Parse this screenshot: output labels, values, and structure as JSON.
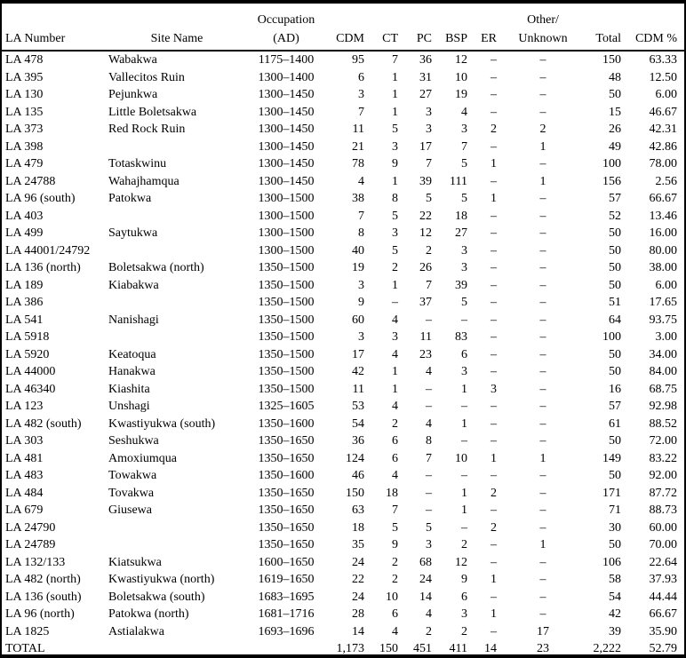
{
  "table": {
    "header": {
      "occupation_line1": "Occupation",
      "other_line1": "Other/",
      "columns": [
        "LA Number",
        "Site Name",
        "(AD)",
        "CDM",
        "CT",
        "PC",
        "BSP",
        "ER",
        "Unknown",
        "Total",
        "CDM %"
      ]
    },
    "rows": [
      [
        "LA 478",
        "Wabakwa",
        "1175–1400",
        "95",
        "7",
        "36",
        "12",
        "–",
        "–",
        "150",
        "63.33"
      ],
      [
        "LA 395",
        "Vallecitos Ruin",
        "1300–1400",
        "6",
        "1",
        "31",
        "10",
        "–",
        "–",
        "48",
        "12.50"
      ],
      [
        "LA 130",
        "Pejunkwa",
        "1300–1450",
        "3",
        "1",
        "27",
        "19",
        "–",
        "–",
        "50",
        "6.00"
      ],
      [
        "LA 135",
        "Little Boletsakwa",
        "1300–1450",
        "7",
        "1",
        "3",
        "4",
        "–",
        "–",
        "15",
        "46.67"
      ],
      [
        "LA 373",
        "Red Rock Ruin",
        "1300–1450",
        "11",
        "5",
        "3",
        "3",
        "2",
        "2",
        "26",
        "42.31"
      ],
      [
        "LA 398",
        "",
        "1300–1450",
        "21",
        "3",
        "17",
        "7",
        "–",
        "1",
        "49",
        "42.86"
      ],
      [
        "LA 479",
        "Totaskwinu",
        "1300–1450",
        "78",
        "9",
        "7",
        "5",
        "1",
        "–",
        "100",
        "78.00"
      ],
      [
        "LA 24788",
        "Wahajhamqua",
        "1300–1450",
        "4",
        "1",
        "39",
        "111",
        "–",
        "1",
        "156",
        "2.56"
      ],
      [
        "LA 96 (south)",
        "Patokwa",
        "1300–1500",
        "38",
        "8",
        "5",
        "5",
        "1",
        "–",
        "57",
        "66.67"
      ],
      [
        "LA 403",
        "",
        "1300–1500",
        "7",
        "5",
        "22",
        "18",
        "–",
        "–",
        "52",
        "13.46"
      ],
      [
        "LA 499",
        "Saytukwa",
        "1300–1500",
        "8",
        "3",
        "12",
        "27",
        "–",
        "–",
        "50",
        "16.00"
      ],
      [
        "LA 44001/24792",
        "",
        "1300–1500",
        "40",
        "5",
        "2",
        "3",
        "–",
        "–",
        "50",
        "80.00"
      ],
      [
        "LA 136 (north)",
        "Boletsakwa (north)",
        "1350–1500",
        "19",
        "2",
        "26",
        "3",
        "–",
        "–",
        "50",
        "38.00"
      ],
      [
        "LA 189",
        "Kiabakwa",
        "1350–1500",
        "3",
        "1",
        "7",
        "39",
        "–",
        "–",
        "50",
        "6.00"
      ],
      [
        "LA 386",
        "",
        "1350–1500",
        "9",
        "–",
        "37",
        "5",
        "–",
        "–",
        "51",
        "17.65"
      ],
      [
        "LA 541",
        "Nanishagi",
        "1350–1500",
        "60",
        "4",
        "–",
        "–",
        "–",
        "–",
        "64",
        "93.75"
      ],
      [
        "LA 5918",
        "",
        "1350–1500",
        "3",
        "3",
        "11",
        "83",
        "–",
        "–",
        "100",
        "3.00"
      ],
      [
        "LA 5920",
        "Keatoqua",
        "1350–1500",
        "17",
        "4",
        "23",
        "6",
        "–",
        "–",
        "50",
        "34.00"
      ],
      [
        "LA 44000",
        "Hanakwa",
        "1350–1500",
        "42",
        "1",
        "4",
        "3",
        "–",
        "–",
        "50",
        "84.00"
      ],
      [
        "LA 46340",
        "Kiashita",
        "1350–1500",
        "11",
        "1",
        "–",
        "1",
        "3",
        "–",
        "16",
        "68.75"
      ],
      [
        "LA 123",
        "Unshagi",
        "1325–1605",
        "53",
        "4",
        "–",
        "–",
        "–",
        "–",
        "57",
        "92.98"
      ],
      [
        "LA 482 (south)",
        "Kwastiyukwa (south)",
        "1350–1600",
        "54",
        "2",
        "4",
        "1",
        "–",
        "–",
        "61",
        "88.52"
      ],
      [
        "LA 303",
        "Seshukwa",
        "1350–1650",
        "36",
        "6",
        "8",
        "–",
        "–",
        "–",
        "50",
        "72.00"
      ],
      [
        "LA 481",
        "Amoxiumqua",
        "1350–1650",
        "124",
        "6",
        "7",
        "10",
        "1",
        "1",
        "149",
        "83.22"
      ],
      [
        "LA 483",
        "Towakwa",
        "1350–1600",
        "46",
        "4",
        "–",
        "–",
        "–",
        "–",
        "50",
        "92.00"
      ],
      [
        "LA 484",
        "Tovakwa",
        "1350–1650",
        "150",
        "18",
        "–",
        "1",
        "2",
        "–",
        "171",
        "87.72"
      ],
      [
        "LA 679",
        "Giusewa",
        "1350–1650",
        "63",
        "7",
        "–",
        "1",
        "–",
        "–",
        "71",
        "88.73"
      ],
      [
        "LA 24790",
        "",
        "1350–1650",
        "18",
        "5",
        "5",
        "–",
        "2",
        "–",
        "30",
        "60.00"
      ],
      [
        "LA 24789",
        "",
        "1350–1650",
        "35",
        "9",
        "3",
        "2",
        "–",
        "1",
        "50",
        "70.00"
      ],
      [
        "LA 132/133",
        "Kiatsukwa",
        "1600–1650",
        "24",
        "2",
        "68",
        "12",
        "–",
        "–",
        "106",
        "22.64"
      ],
      [
        "LA 482 (north)",
        "Kwastiyukwa (north)",
        "1619–1650",
        "22",
        "2",
        "24",
        "9",
        "1",
        "–",
        "58",
        "37.93"
      ],
      [
        "LA 136 (south)",
        "Boletsakwa (south)",
        "1683–1695",
        "24",
        "10",
        "14",
        "6",
        "–",
        "–",
        "54",
        "44.44"
      ],
      [
        "LA 96 (north)",
        "Patokwa (north)",
        "1681–1716",
        "28",
        "6",
        "4",
        "3",
        "1",
        "–",
        "42",
        "66.67"
      ],
      [
        "LA 1825",
        "Astialakwa",
        "1693–1696",
        "14",
        "4",
        "2",
        "2",
        "–",
        "17",
        "39",
        "35.90"
      ]
    ],
    "total_row": [
      "TOTAL",
      "",
      "",
      "1,173",
      "150",
      "451",
      "411",
      "14",
      "23",
      "2,222",
      "52.79"
    ]
  }
}
